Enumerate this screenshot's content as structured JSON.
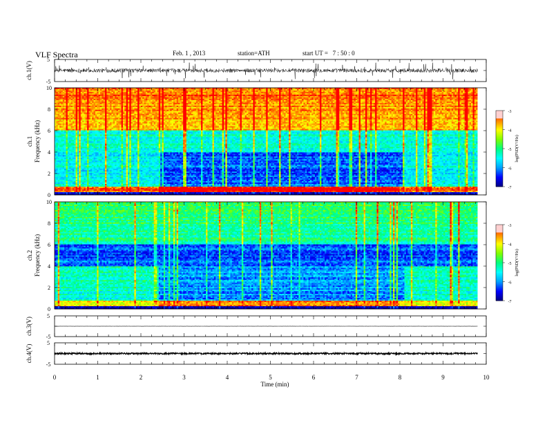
{
  "header": {
    "title": "VLF Spectra",
    "date": "Feb. 1 , 2013",
    "station": "station=ATH",
    "start": "start UT =   7 : 50 : 0"
  },
  "chart_data": [
    {
      "type": "line",
      "panel": "ch1-waveform",
      "ylabel": "ch.1(V)",
      "ylim": [
        -5,
        5
      ],
      "yticks": [
        "5",
        "-5"
      ],
      "series": [
        {
          "baseline": 0,
          "amplitude": 1.2,
          "spikes": "frequent ±4"
        }
      ]
    },
    {
      "type": "heatmap",
      "panel": "ch1-spectrogram",
      "ylabel": "ch.1\nFrequency (kHz)",
      "ylabel_lines": [
        "ch.1",
        "Frequency (kHz)"
      ],
      "ylim": [
        0,
        10
      ],
      "yticks": [
        "0",
        "2",
        "4",
        "6",
        "8",
        "10"
      ],
      "colorbar": {
        "label": "log(PSD(V²/Hz)",
        "ticks": [
          "-3",
          "-4",
          "-5",
          "-6",
          "-7"
        ],
        "range": [
          -7,
          -3
        ]
      },
      "description_levels": {
        "above_6kHz": -3.8,
        "4_to_6kHz": -5.3,
        "below_4kHz": -6.2,
        "band_0.5kHz": -3.5
      }
    },
    {
      "type": "heatmap",
      "panel": "ch2-spectrogram",
      "ylabel_lines": [
        "ch.2",
        "Frequency (kHz)"
      ],
      "ylim": [
        0,
        10
      ],
      "yticks": [
        "0",
        "2",
        "4",
        "6",
        "8",
        "10"
      ],
      "colorbar": {
        "label": "log(PSD(V²/Hz)",
        "ticks": [
          "-3",
          "-4",
          "-5",
          "-6",
          "-7"
        ],
        "range": [
          -7,
          -3
        ]
      },
      "description_levels": {
        "above_6kHz": -5.2,
        "4_to_6kHz": -6.2,
        "below_4kHz": -6.0,
        "band_0.5kHz": -4.0
      }
    },
    {
      "type": "line",
      "panel": "ch3-waveform",
      "ylabel": "ch.3(V)",
      "ylim": [
        -5,
        5
      ],
      "yticks": [
        "5",
        "-5"
      ],
      "series": [
        {
          "baseline": 0,
          "amplitude": 0.05
        }
      ]
    },
    {
      "type": "line",
      "panel": "ch4-waveform",
      "ylabel": "ch.4(V)",
      "ylim": [
        -5,
        5
      ],
      "yticks": [
        "5",
        "-5"
      ],
      "series": [
        {
          "baseline": 0,
          "amplitude": 0.4
        }
      ]
    }
  ],
  "xaxis": {
    "label": "Time (min)",
    "range": [
      0,
      10
    ],
    "ticks": [
      "0",
      "1",
      "2",
      "3",
      "4",
      "5",
      "6",
      "7",
      "8",
      "9",
      "10"
    ],
    "data_end": 9.8
  },
  "colors": {
    "colormap": [
      "#000080",
      "#0000ff",
      "#00a0ff",
      "#00ffff",
      "#00ff80",
      "#80ff00",
      "#ffff00",
      "#ff8000",
      "#ff0000",
      "#ffffff"
    ]
  }
}
